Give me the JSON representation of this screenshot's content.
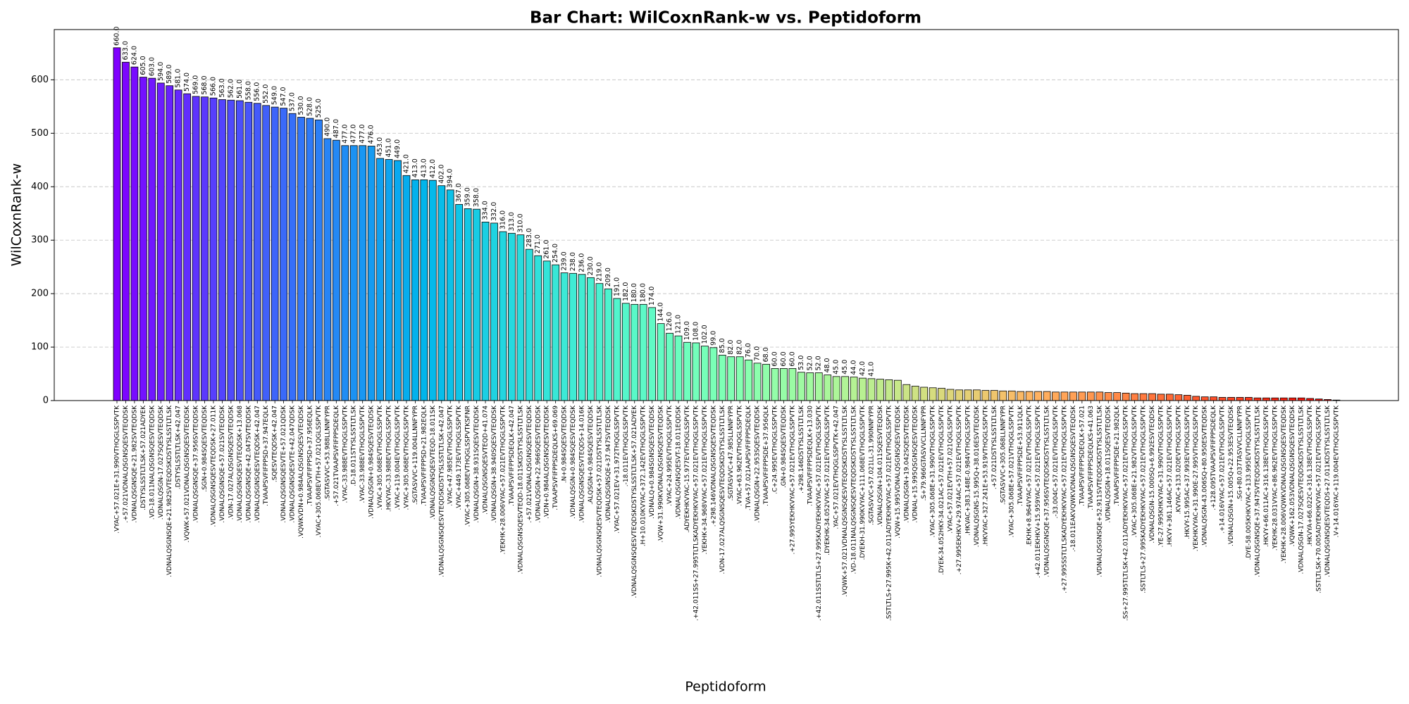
{
  "chart_data": {
    "type": "bar",
    "title": "Bar Chart: WilCoxnRank-w vs. Peptidoform",
    "x_label": "Peptidoform",
    "y_label": "WilCoxnRank-w",
    "categories": [
      ".VYAC+57.021E+31.990VTHQGLSSPVTK",
      ".+57.021VDNALQSGNSQESVTEQDSK",
      ".VDNALQSGNSQE+21.982SVTEQDSK",
      ".DSTYSLSSTLTLSK+57.021ADYEK",
      ".VD-18.011NALQSGNSQESVTEQDSK",
      ".VDNALQSGN-17.027SQESVTEQDSK",
      ".VDNALQSGNSQE+21.982SVTEQDSKDSTYSLSSTLTLSK",
      ".DSTYSLSSTLTLSK+42.047",
      ".VQWK+57.021VDNALQSGNSQESVTEQDSK",
      ".VDNALQSGNSQE+37.956SVTEQDSK",
      ".SGN+0.984SQESVTEQDSK",
      ".VDNALQSGNSQESVTEQDSK+27.011K",
      ".VDNALQSGNSQE+57.021SVTEQDSK",
      ".VDN-17.027ALQSGNSQESVTEQDSK",
      ".VDNALQSGNSQESVTEQDSK+13.068",
      ".VDNALQSGNSQE+42.047SVTEQDSK",
      ".VDNALQSGNSQESVTEQDSK+42.047",
      ".TVAAPSVFIFPPSD+37.947EQLK",
      ".SQESVTEQDSK+42.047",
      ".VDNALQSGNSQESVTE+57.021QDSK",
      ".VDNALQSGNSQESVTE+42.047QDSK",
      ".VQWKVDN+0.984ALQSGNSQESVTEQDSK",
      ".TVAAPSVFIFPPSD+37.956EQLK",
      ".VYAC+305.068EVTH+57.021QGLSSPVTK",
      ".SGTASVVC+53.988LLNNFYPR",
      ".+57.021TVAAPSVFIFPPSDEQLK",
      ".VYAC-33.988EVTHQGLSSPVTK",
      ".D-18.011STYSLSSTLTLSK",
      ".VYAC-33.988EVTHQGLSSPVTK",
      ".VDNALQSGN+0.984SQESVTEQDSK",
      ".VYAC+305.068EVTHQGLSSPVTK",
      ".HKVYAC-33.988EVTHQGLSSPVTK",
      ".VYAC+119.004EVTHQGLSSPVTK",
      ".VYAC+305.068EVTHQGLSSPVTK",
      ".SGTASVVC+119.004LLNNFYPR",
      ".TVAAPSVFIFPPSD+21.982EQLK",
      ".VDNALQSGNSQESVTEQD-18.011SK",
      ".VDNALQSGNSQESVTEQDSKDSTYSLSSTLTLSK+42.047",
      ".VYAC+47.985EVTHQGLSSPVTK",
      ".VYAC+449.173EVTHQGLSSPVTK",
      ".VYAC+305.068EVTHQGLSSPVTKSFNR",
      ".VDNALQSGN+38.931SQESVTEQDSK",
      ".VDNALQSGNSQESVTEQD+41.074",
      ".VDNALQSGN+38.940SQESVTEQDSK",
      ".YEKHK+28.006VYAC+57.021EVTHQGLSSPVTK",
      ".TVAAPSVFIFPPSDEQLK+42.047",
      ".VDNALQSGNSQESVTEQD-18.011SKDSTYSLSSTLTLSK",
      ".+57.021VDNALQSGNSQESVTEQDSK",
      ".VDNALQSGN+22.966SQESVTEQDSK",
      ".VDN+0.984ALQSGNSQESVTEQDSK",
      ".TVAAPSVFIFPPSDEQLKS+69.069",
      ".N+0.984SQESVTEQDSK",
      ".VDNALQSGN+0.984SQESVTEQDSK",
      ".VDNALQSGNSQESVTEQDS+14.016K",
      ".ALQSGN+0.984SQESVTEQDSK",
      ".VDNALQSGNSQESVTEQDSK+57.021DSTYSLSSTLTLSK",
      ".VDNALQSGNSQE+37.947SVTEQDSK",
      ".VYAC+57.021EV+31.972THQGLSSPVTK",
      ".-18.011EVTHQGLSSPVTK",
      ".VDNALQSGNSQESVTEQDSKDSTYSLSSTLTLSK+57.021ADYEK",
      ".H+10.010KVYAC+372.142EVTHQGLSSPVTK",
      ".VDNALQ+0.984SGNSQESVTEQDSK",
      ".VQW+31.990KVDNALQSGNSQESVTEQDSK",
      ".VYAC+24.995EVTHQGLSSPVTK",
      ".VDNALQSGNSQESVT-18.011EQDSK",
      ".ADYEKHKVYAC-15.977EVTHQGLSSPVTK",
      ".+42.011SS+27.995TLTLSKADYEKHKVYAC+57.021EVTHQGLSSPVTK",
      ".YEKHK+34.968VYAC+57.021EVTHQGLSSPVTK",
      ".+298.146VDNALQSGNSQESVTEQDSK",
      ".VDN-17.027ALQSGNSQESVTEQDSKDSTYSLSSTLTLSK",
      ".SGTASVVC+47.985LLNNFYPR",
      ".VYAC+63.962EVTHQGLSSPVTK",
      ".TVA+57.021AAPSVFIFPPSDEQLK",
      ".VDNALQSGN+22.953SQESVTEQDSK",
      ".TVAAPSVFIFPPSDE+37.956QLK",
      ".C+24.995EVTHQGLSSPVTK",
      ".GN+0.984SQESVTEQDSK",
      ".+27.995YEKHKVYAC+57.021EVTHQGLSSPVTK",
      ".+298.146DSTYSLSSTLTLSK",
      ".TVAAPSVFIFPPSDEQLK+13.030",
      ".+42.011SSTLTLS+27.995KADYEKHKVYAC+57.021EVTHQGLSSPVTK",
      ".DYEKHK-34.052VYAC+57.021EVTHQGLSSPVTK",
      ".YAC+57.021EVTHQGLSSPVTK+42.047",
      ".VQWK+57.021VDNALQSGNSQESVTEQDSKDSTYSLSSTLTLSK",
      ".VD-18.011NALQSGNSQESVTEQDSKDSTYSLSSTLTLSK",
      ".DYEKH-31.990KVYAC+111.068EVTHQGLSSPVTK",
      ".SGTASVVC+57.021LL-31.990NNFYPR",
      ".VDNALQSGN+104.011SQESVTEQDSK",
      ".SSTLTLS+27.995K+42.011ADYEKHKVYAC+57.021EVTHQGLSSPVTK",
      ".VQW+15.995VDNALQSGNSQESVTEQDSK",
      ".VDNALQSGN+19.042SQESVTEQDSK",
      ".VDNAL+15.995QSGNSQESVTEQDSK",
      ".S+79.966GTASVVCLLNNFYPR",
      ".VYAC+305.068E+31.990VTHQGLSSPVTK",
      ".DYEK-34.052HKY-34.021AC+57.021EVTHQGLSSPVTK",
      ".VYAC+57.021EVTH+57.021QGLSSPVTK",
      ".+27.995EKHKV+29.974AC+57.021EVTHQGLSSPVTK",
      ".HKVAC+383.148E-0.984VTHQGLSSPVTK",
      ".VDNALQSGNS-15.995Q+38.016ESVTEQDSK",
      ".HKVYAC+327.241E+53.919VTHQGLSSPVTK",
      ".+57.021DSTYSLSSTLTLSK",
      ".SGTASVVC+305.068LLNNFYPR",
      ".VYAC+305.068E+57.021VTHQGLSSPVTK",
      ".TVAAPSVFIFPPSDE+53.911QLK",
      ".EKHK+8.964VYAC+57.021EVTHQGLSSPVTK",
      ".+42.011EKHKV+15.959YAC+57.021EVTHQGLSSPVTK",
      ".VDNALQSGNSQE+37.956SVTEQDSKDSTYSLSSTLTLSK",
      ".-33.004C+57.021EVTHQGLSSPVTK",
      ".+27.995SSTLTLSKADYEKHKVYAC+57.021EVTHQGLSSPVTK",
      ".-18.011EAKVQWKVDNALQSGNSQESVTEQDSK",
      ".TVAAPSVFIFPPSDEQLK+57.021",
      ".TVAAPSVFIFPPSDEQLKS+41.063",
      ".VDNALQSGNSQE+52.911SVTEQDSKDSTYSLSSTLTLSK",
      ".VDNALQSGN+18.011SQESVTEQDSK",
      ".TVAAPSVFIFPPSDE+21.982QLK",
      ".SS+27.995TLTLSK+42.011ADYEKHKVYAC+57.021EVTHQGLSSPVTK",
      ".VYAC+305.068E+21.982VTHQGLSSPVTK",
      ".SSTLTLS+27.995KADYEKHKVYAC+57.021EVTHQGLSSPVTK",
      ".VDNALQSGN-15.000SQ+6.992ESVTEQDSK",
      ".YE-27.995KHKVYAC+31.990VTHQGLSSPVTK",
      ".HKVY+361.146AC+57.021EVTHQGLSSPVTK",
      ".KVYAC+133.020EVTHQGLSSPVTK",
      ".HKVY-15.995AC+37.993EVTHQGLSSPVTK",
      ".YEKHKVYAC+31.990E-27.995VTHQGLSSPVTK",
      ".VDNALQSGN-43.006SQ+80.950ESVTEQDSK",
      ".+128.095TVAAPSVFIFPPSDEQLK",
      ".+14.016VYAC+57.021EVTHQGLSSPVTK",
      ".VDNALQSGN+15.005Q+22.953ESVTEQDSK",
      ".SG+80.037TASVVCLLNNFYPR",
      ".DYE-58.005KHKVYAC+133.995EVTHQGLSSPVTK",
      ".VDNALQSGNSQE+37.947SVTEQDSKDSTYSLSSTLTLSK",
      ".HKVY+66.011AC+316.138EVTHQGLSSPVTK",
      ".YEKHK-28.031VYAC+86.962EVTHQGLSSPVTK",
      ".YEKHK+28.006VQWKVDNALQSGNSQESVTEQDSK",
      ".VQWK+162.053VDNALQSGNSQESVTEQDSK",
      ".VDNALQSGN-17.027SQESVTEQDSKDSTYSLSSTLTLSK",
      ".HKVYA+66.022C+316.138EVTHQGLSSPVTK",
      ".SSTLTLSK+70.005ADYEKHKVYAC+57.021EVTHQGLSSPVTK",
      ".VDNALQSGNSQESVTEQDS+27.011KDSTYSLSSTLTLSK",
      ".V+14.016YAC+119.004EVTHQGLSSPVTK"
    ],
    "values": [
      660,
      633,
      624,
      605,
      603,
      594,
      589,
      581,
      574,
      569,
      568,
      566,
      563,
      562,
      561,
      558,
      556,
      552,
      549,
      547,
      537,
      530,
      528,
      525,
      490,
      487,
      477,
      477,
      477,
      476,
      453,
      451,
      449,
      421,
      413,
      413,
      412,
      402,
      394,
      367,
      359,
      358,
      334,
      332,
      316,
      313,
      310,
      283,
      271,
      261,
      254,
      239,
      238,
      236,
      230,
      219,
      209,
      191,
      182,
      180,
      180,
      174,
      144,
      126,
      121,
      109,
      108,
      102,
      99,
      85,
      82,
      82,
      76,
      70,
      68,
      60,
      60,
      60,
      53,
      52,
      52,
      48,
      45,
      45,
      44,
      42,
      41,
      40,
      39,
      38,
      30,
      27,
      25,
      24,
      23,
      21,
      20,
      20,
      20,
      19,
      19,
      18,
      18,
      17,
      17,
      17,
      17,
      16,
      16,
      16,
      16,
      16,
      16,
      15,
      15,
      14,
      13,
      13,
      13,
      12,
      12,
      11,
      10,
      8,
      7,
      7,
      6,
      6,
      6,
      6,
      5,
      5,
      5,
      5,
      5,
      5,
      4,
      3,
      2,
      1
    ],
    "value_labels": [
      "660.0",
      "633.0",
      "624.0",
      "605.0",
      "603.0",
      "594.0",
      "589.0",
      "581.0",
      "574.0",
      "569.0",
      "568.0",
      "566.0",
      "563.0",
      "562.0",
      "561.0",
      "558.0",
      "556.0",
      "552.0",
      "549.0",
      "547.0",
      "537.0",
      "530.0",
      "528.0",
      "525.0",
      "490.0",
      "487.0",
      "477.0",
      "477.0",
      "477.0",
      "476.0",
      "453.0",
      "451.0",
      "449.0",
      "421.0",
      "413.0",
      "413.0",
      "412.0",
      "402.0",
      "394.0",
      "367.0",
      "359.0",
      "358.0",
      "334.0",
      "332.0",
      "316.0",
      "313.0",
      "310.0",
      "283.0",
      "271.0",
      "261.0",
      "254.0",
      "239.0",
      "238.0",
      "236.0",
      "230.0",
      "219.0",
      "209.0",
      "191.0",
      "182.0",
      "180.0",
      "180.0",
      "174.0",
      "144.0",
      "126.0",
      "121.0",
      "109.0",
      "108.0",
      "102.0",
      "99.0",
      "85.0",
      "82.0",
      "82.0",
      "76.0",
      "70.0",
      "68.0",
      "60.0",
      "60.0",
      "60.0",
      "53.0",
      "52.0",
      "52.0",
      "48.0",
      "45.0",
      "45.0",
      "44.0",
      "42.0",
      "41.0",
      null,
      null,
      null,
      null,
      null,
      null,
      null,
      null,
      null,
      null,
      null,
      null,
      null,
      null,
      null,
      null,
      null,
      null,
      null,
      null,
      null,
      null,
      null,
      null,
      null,
      null,
      null,
      null,
      null,
      null,
      null,
      null,
      null,
      null,
      null,
      null,
      null,
      null,
      null,
      null,
      null,
      null,
      null,
      null,
      null,
      null,
      null,
      null,
      null,
      null,
      null,
      null,
      null
    ],
    "colormap": "rainbow",
    "edge_color": "#000000",
    "ylim": [
      0,
      694
    ],
    "yticks": [
      0,
      100,
      200,
      300,
      400,
      500,
      600
    ],
    "grid": true
  }
}
